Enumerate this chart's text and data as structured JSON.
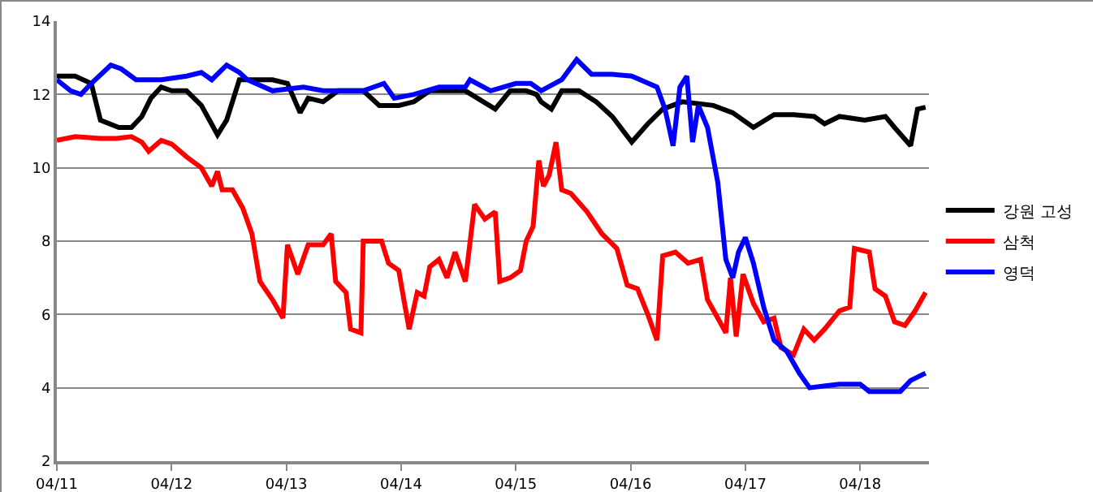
{
  "chart_data": {
    "type": "line",
    "xlim": [
      "--04-11T00:00",
      "--04-18T14:24"
    ],
    "xticks": [
      {
        "value": "--04-11",
        "label": "04/11"
      },
      {
        "value": "--04-12",
        "label": "04/12"
      },
      {
        "value": "--04-13",
        "label": "04/13"
      },
      {
        "value": "--04-14",
        "label": "04/14"
      },
      {
        "value": "--04-15",
        "label": "04/15"
      },
      {
        "value": "--04-16",
        "label": "04/16"
      },
      {
        "value": "--04-17",
        "label": "04/17"
      },
      {
        "value": "--04-18",
        "label": "04/18"
      }
    ],
    "ylim": [
      2,
      14
    ],
    "yticks": [
      2,
      4,
      6,
      8,
      10,
      12,
      14
    ],
    "grid": "y",
    "legend": "right",
    "marker": "none",
    "line_style": "solid",
    "series": [
      {
        "name": "강원 고성",
        "color": "#000000",
        "x": [
          "--04-11T00:00",
          "--04-11T03:50",
          "--04-11T07:12",
          "--04-11T09:07",
          "--04-11T12:58",
          "--04-11T15:36",
          "--04-11T17:46",
          "--04-11T19:41",
          "--04-11T21:50",
          "--04-12T00:00",
          "--04-12T03:07",
          "--04-12T06:14",
          "--04-12T09:36",
          "--04-12T11:31",
          "--04-12T14:10",
          "--04-12T21:07",
          "--04-13T00:14",
          "--04-13T02:53",
          "--04-13T04:34",
          "--04-13T07:41",
          "--04-13T10:48",
          "--04-13T16:05",
          "--04-13T19:26",
          "--04-13T23:31",
          "--04-14T02:38",
          "--04-14T06:00",
          "--04-14T13:26",
          "--04-14T19:41",
          "--04-14T22:48",
          "--04-15T02:10",
          "--04-15T04:19",
          "--04-15T05:17",
          "--04-15T07:26",
          "--04-15T09:36",
          "--04-15T13:12",
          "--04-15T16:48",
          "--04-15T20:10",
          "--04-16T00:14",
          "--04-16T03:36",
          "--04-16T06:43",
          "--04-16T10:48",
          "--04-16T17:17",
          "--04-16T21:22",
          "--04-17T01:41",
          "--04-17T06:00",
          "--04-17T10:05",
          "--04-17T14:24",
          "--04-17T16:34",
          "--04-17T19:41",
          "--04-18T00:58",
          "--04-18T05:17",
          "--04-18T07:12",
          "--04-18T10:34",
          "--04-18T12:00",
          "--04-18T13:41"
        ],
        "values": [
          12.5,
          12.5,
          12.3,
          11.3,
          11.1,
          11.1,
          11.4,
          11.9,
          12.2,
          12.1,
          12.1,
          11.7,
          10.9,
          11.3,
          12.4,
          12.4,
          12.3,
          11.5,
          11.9,
          11.8,
          12.1,
          12.1,
          11.7,
          11.7,
          11.8,
          12.1,
          12.1,
          11.6,
          12.1,
          12.1,
          12.0,
          11.8,
          11.6,
          12.1,
          12.1,
          11.8,
          11.4,
          10.7,
          11.2,
          11.6,
          11.8,
          11.7,
          11.5,
          11.1,
          11.45,
          11.45,
          11.4,
          11.2,
          11.4,
          11.3,
          11.4,
          11.1,
          10.6,
          11.6,
          11.65
        ]
      },
      {
        "name": "삼척",
        "color": "#ff0000",
        "x": [
          "--04-11T00:00",
          "--04-11T03:50",
          "--04-11T09:07",
          "--04-11T12:29",
          "--04-11T15:36",
          "--04-11T17:46",
          "--04-11T19:12",
          "--04-11T21:50",
          "--04-12T00:00",
          "--04-12T03:07",
          "--04-12T06:14",
          "--04-12T08:24",
          "--04-12T09:36",
          "--04-12T10:34",
          "--04-12T12:43",
          "--04-12T14:53",
          "--04-12T16:48",
          "--04-12T18:29",
          "--04-12T21:07",
          "--04-12T23:17",
          "--04-13T00:14",
          "--04-13T02:24",
          "--04-13T04:34",
          "--04-13T07:41",
          "--04-13T09:22",
          "--04-13T10:19",
          "--04-13T12:29",
          "--04-13T13:26",
          "--04-13T15:36",
          "--04-13T16:05",
          "--04-13T19:55",
          "--04-13T21:22",
          "--04-13T23:31",
          "--04-14T00:43",
          "--04-14T01:41",
          "--04-14T03:22",
          "--04-14T04:48",
          "--04-14T06:00",
          "--04-14T07:55",
          "--04-14T09:36",
          "--04-14T11:17",
          "--04-14T13:26",
          "--04-14T15:22",
          "--04-14T17:31",
          "--04-14T19:41",
          "--04-14T20:38",
          "--04-14T22:48",
          "--04-15T00:58",
          "--04-15T02:10",
          "--04-15T03:36",
          "--04-15T04:48",
          "--04-15T05:46",
          "--04-15T06:58",
          "--04-15T08:24",
          "--04-15T09:36",
          "--04-15T11:31",
          "--04-15T14:53",
          "--04-15T18:00",
          "--04-15T21:07",
          "--04-15T23:17",
          "--04-16T01:26",
          "--04-16T03:36",
          "--04-16T05:31",
          "--04-16T06:43",
          "--04-16T09:22",
          "--04-16T12:00",
          "--04-16T14:38",
          "--04-16T16:05",
          "--04-16T18:14",
          "--04-16T19:55",
          "--04-16T20:53",
          "--04-16T22:05",
          "--04-16T23:31",
          "--04-17T01:41",
          "--04-17T03:50",
          "--04-17T06:00",
          "--04-17T07:26",
          "--04-17T10:05",
          "--04-17T12:14",
          "--04-17T14:24",
          "--04-17T16:34",
          "--04-17T19:41",
          "--04-17T21:50",
          "--04-17T22:48",
          "--04-18T01:55",
          "--04-18T03:07",
          "--04-18T05:17",
          "--04-18T07:12",
          "--04-18T09:22",
          "--04-18T11:31",
          "--04-18T13:41"
        ],
        "values": [
          10.75,
          10.85,
          10.8,
          10.8,
          10.85,
          10.7,
          10.45,
          10.75,
          10.65,
          10.3,
          10.0,
          9.5,
          9.9,
          9.4,
          9.4,
          8.9,
          8.2,
          6.9,
          6.4,
          5.9,
          7.9,
          7.1,
          7.9,
          7.9,
          8.2,
          6.9,
          6.6,
          5.6,
          5.5,
          8.0,
          8.0,
          7.4,
          7.2,
          6.3,
          5.6,
          6.6,
          6.5,
          7.3,
          7.5,
          7.0,
          7.7,
          6.9,
          9.0,
          8.6,
          8.8,
          6.9,
          7.0,
          7.2,
          8.0,
          8.4,
          10.2,
          9.5,
          9.8,
          10.7,
          9.4,
          9.3,
          8.8,
          8.2,
          7.8,
          6.8,
          6.7,
          6.0,
          5.3,
          7.6,
          7.7,
          7.4,
          7.5,
          6.4,
          5.9,
          5.5,
          7.0,
          5.4,
          7.1,
          6.3,
          5.8,
          5.9,
          5.1,
          4.9,
          5.6,
          5.3,
          5.6,
          6.1,
          6.2,
          7.8,
          7.7,
          6.7,
          6.5,
          5.8,
          5.7,
          6.1,
          6.6
        ]
      },
      {
        "name": "영덕",
        "color": "#0000ff",
        "x": [
          "--04-11T00:00",
          "--04-11T02:53",
          "--04-11T05:02",
          "--04-11T07:12",
          "--04-11T11:17",
          "--04-11T13:26",
          "--04-11T16:34",
          "--04-11T21:50",
          "--04-12T03:07",
          "--04-12T06:14",
          "--04-12T08:24",
          "--04-12T11:31",
          "--04-12T14:10",
          "--04-12T15:50",
          "--04-12T21:07",
          "--04-13T03:36",
          "--04-13T07:41",
          "--04-13T16:05",
          "--04-13T20:24",
          "--04-13T22:34",
          "--04-14T02:38",
          "--04-14T07:55",
          "--04-14T13:26",
          "--04-14T14:24",
          "--04-14T18:43",
          "--04-15T00:00",
          "--04-15T03:07",
          "--04-15T05:17",
          "--04-15T09:36",
          "--04-15T12:43",
          "--04-15T15:50",
          "--04-15T20:10",
          "--04-16T00:14",
          "--04-16T05:31",
          "--04-16T07:12",
          "--04-16T08:53",
          "--04-16T10:19",
          "--04-16T11:46",
          "--04-16T12:58",
          "--04-16T14:10",
          "--04-16T16:05",
          "--04-16T18:14",
          "--04-16T19:55",
          "--04-16T21:22",
          "--04-16T22:34",
          "--04-17T00:00",
          "--04-17T01:41",
          "--04-17T03:50",
          "--04-17T06:00",
          "--04-17T08:38",
          "--04-17T11:17",
          "--04-17T13:26",
          "--04-17T19:41",
          "--04-18T00:00",
          "--04-18T01:55",
          "--04-18T08:24",
          "--04-18T10:34",
          "--04-18T13:41"
        ],
        "values": [
          12.4,
          12.1,
          12.0,
          12.3,
          12.8,
          12.7,
          12.4,
          12.4,
          12.5,
          12.6,
          12.4,
          12.8,
          12.6,
          12.4,
          12.1,
          12.2,
          12.1,
          12.1,
          12.3,
          11.9,
          12.0,
          12.2,
          12.2,
          12.4,
          12.1,
          12.3,
          12.3,
          12.1,
          12.4,
          12.95,
          12.55,
          12.55,
          12.5,
          12.2,
          11.6,
          10.6,
          12.2,
          12.5,
          10.7,
          11.7,
          11.1,
          9.6,
          7.5,
          7.0,
          7.7,
          8.1,
          7.4,
          6.2,
          5.3,
          5.0,
          4.4,
          4.0,
          4.1,
          4.1,
          3.9,
          3.9,
          4.2,
          4.4
        ]
      }
    ]
  }
}
